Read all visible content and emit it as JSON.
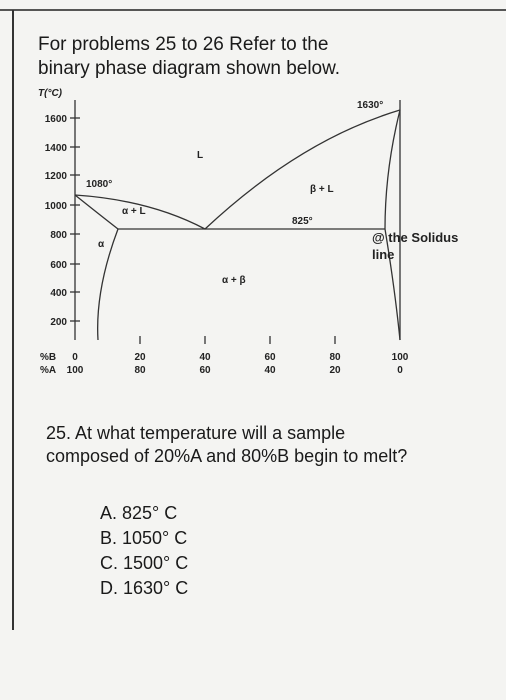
{
  "header": {
    "lines": [
      "For problems 25 to 26 Refer to the",
      "binary phase diagram shown below."
    ]
  },
  "diagram": {
    "y_axis_label": "T(°C)",
    "y_ticks": [
      "1600",
      "1400",
      "1200",
      "1000",
      "800",
      "600",
      "400",
      "200"
    ],
    "x_rows": [
      {
        "label": "%B",
        "ticks": [
          "0",
          "20",
          "40",
          "60",
          "80",
          "100"
        ]
      },
      {
        "label": "%A",
        "ticks": [
          "100",
          "80",
          "60",
          "40",
          "20",
          "0"
        ]
      }
    ],
    "annotations": [
      "1630°",
      "L",
      "1080°",
      "α + L",
      "β + L",
      "825°",
      "α",
      "α + β"
    ],
    "note": [
      "@ the Solidus",
      "line"
    ]
  },
  "question": {
    "text": "25. At what temperature will a sample composed of 20%A and 80%B begin to melt?",
    "options": [
      "A.  825°  C",
      "B.  1050°  C",
      "C.  1500°  C",
      "D.  1630°  C"
    ]
  }
}
